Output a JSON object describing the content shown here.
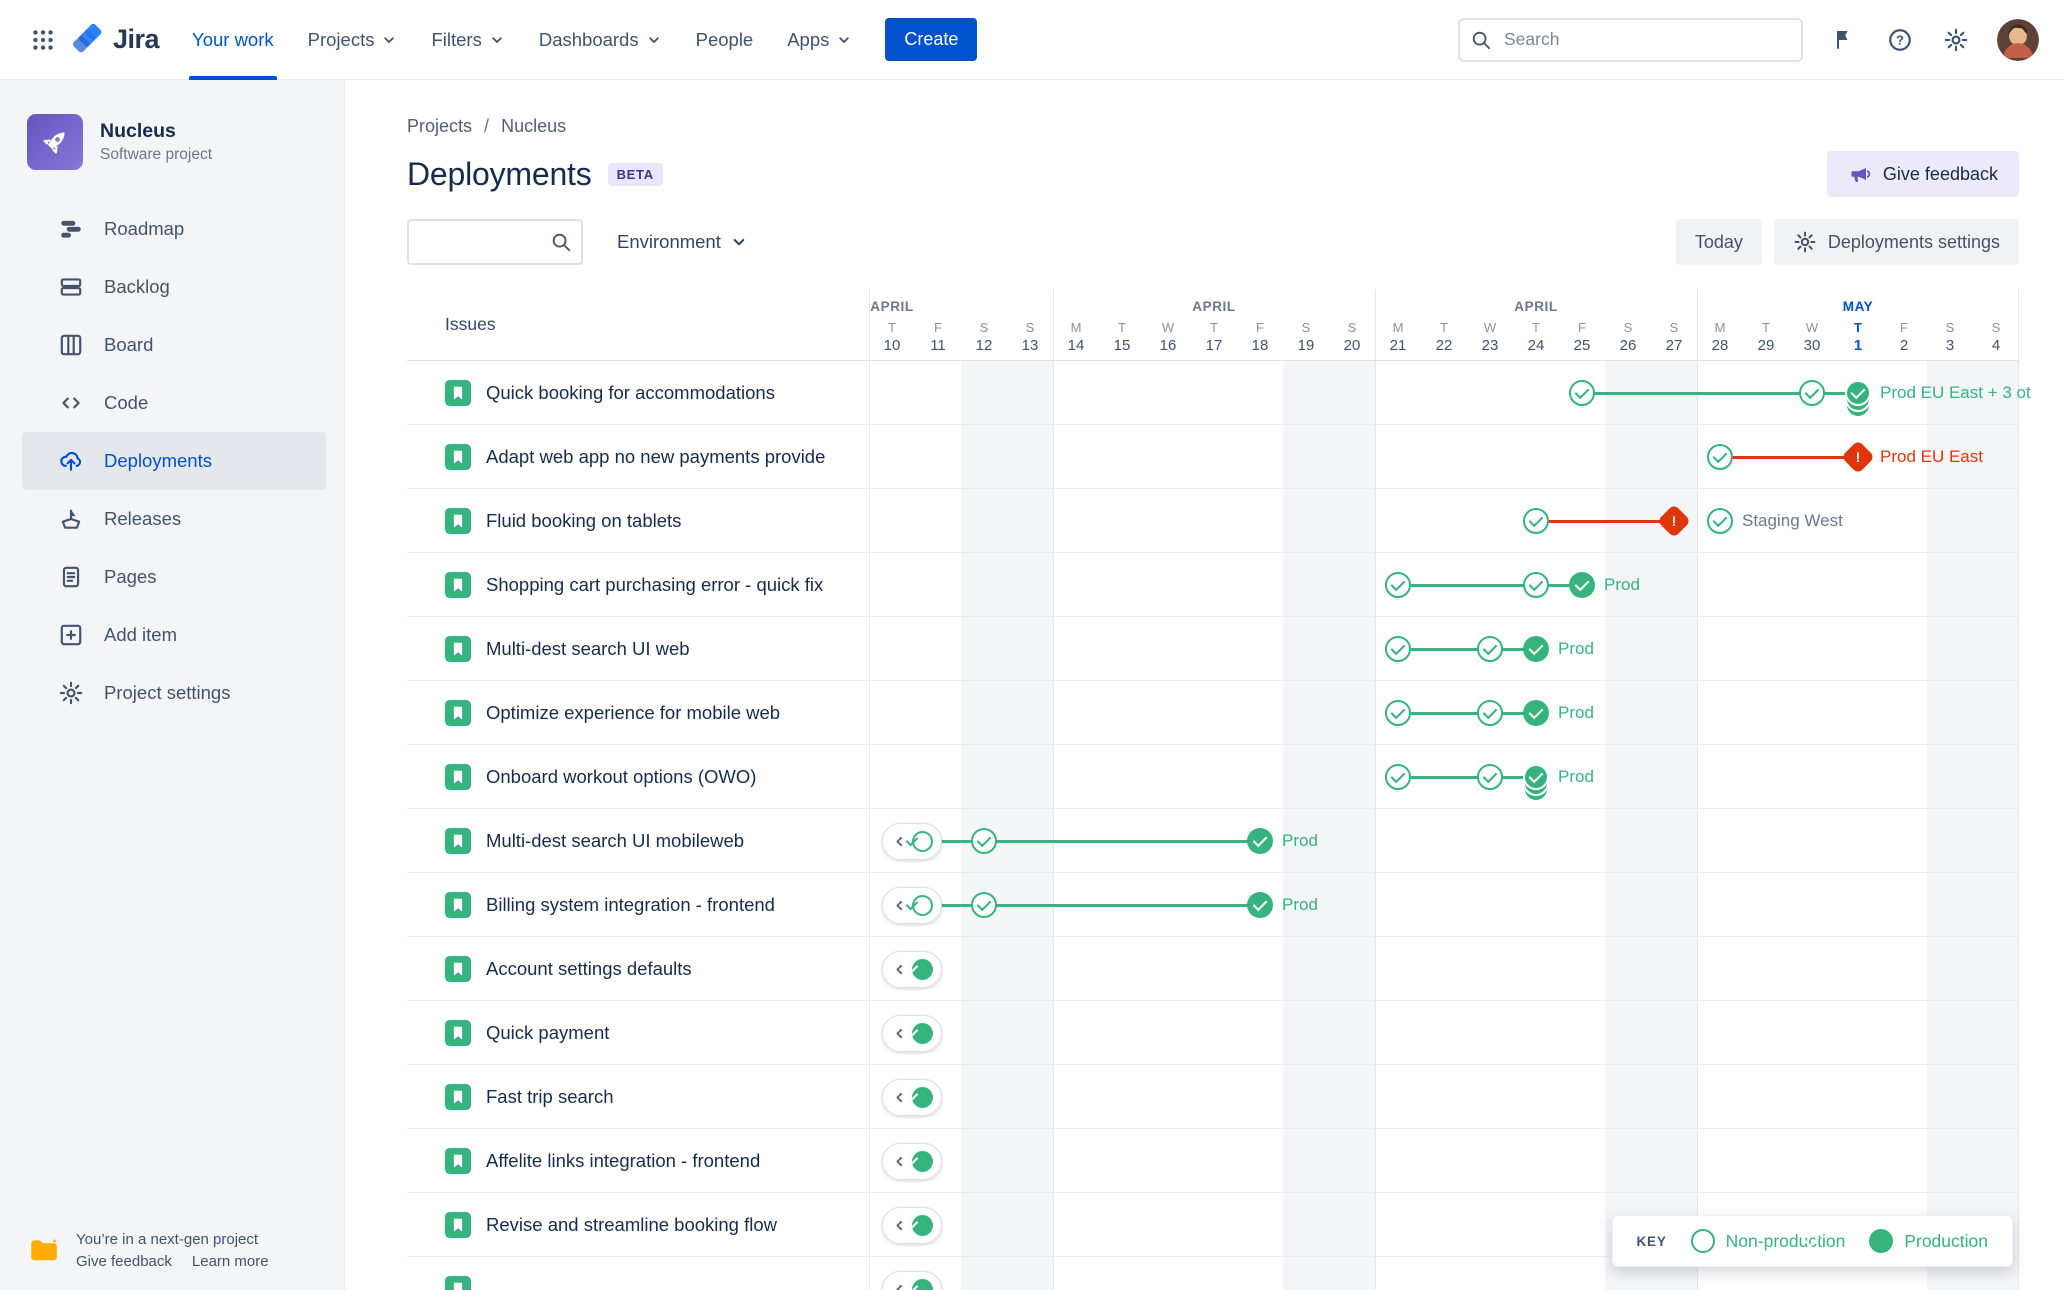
{
  "topnav": {
    "logo_text": "Jira",
    "items": [
      {
        "label": "Your work",
        "active": true,
        "chevron": false
      },
      {
        "label": "Projects",
        "active": false,
        "chevron": true
      },
      {
        "label": "Filters",
        "active": false,
        "chevron": true
      },
      {
        "label": "Dashboards",
        "active": false,
        "chevron": true
      },
      {
        "label": "People",
        "active": false,
        "chevron": false
      },
      {
        "label": "Apps",
        "active": false,
        "chevron": true
      }
    ],
    "create_label": "Create",
    "search_placeholder": "Search"
  },
  "sidebar": {
    "project_name": "Nucleus",
    "project_type": "Software project",
    "items": [
      {
        "label": "Roadmap",
        "icon": "roadmap-icon",
        "selected": false
      },
      {
        "label": "Backlog",
        "icon": "backlog-icon",
        "selected": false
      },
      {
        "label": "Board",
        "icon": "board-icon",
        "selected": false
      },
      {
        "label": "Code",
        "icon": "code-icon",
        "selected": false
      },
      {
        "label": "Deployments",
        "icon": "deployments-icon",
        "selected": true
      },
      {
        "label": "Releases",
        "icon": "releases-icon",
        "selected": false
      },
      {
        "label": "Pages",
        "icon": "pages-icon",
        "selected": false
      },
      {
        "label": "Add item",
        "icon": "add-item-icon",
        "selected": false
      },
      {
        "label": "Project settings",
        "icon": "settings-icon",
        "selected": false
      }
    ],
    "footer_note": "You’re in a next-gen project",
    "footer_links": [
      "Give feedback",
      "Learn more"
    ]
  },
  "page": {
    "breadcrumb": [
      "Projects",
      "Nucleus"
    ],
    "breadcrumb_separator": "/",
    "title": "Deployments",
    "beta_badge": "BETA",
    "give_feedback": "Give feedback",
    "environment_filter": "Environment",
    "today_button": "Today",
    "settings_button": "Deployments settings",
    "issues_header": "Issues"
  },
  "timeline": {
    "months": [
      {
        "label": "APRIL",
        "col": 0,
        "accent": false
      },
      {
        "label": "APRIL",
        "col": 7,
        "accent": false
      },
      {
        "label": "APRIL",
        "col": 14,
        "accent": false
      },
      {
        "label": "MAY",
        "col": 21,
        "accent": true
      }
    ],
    "days": [
      {
        "dow": "T",
        "date": "10"
      },
      {
        "dow": "F",
        "date": "11"
      },
      {
        "dow": "S",
        "date": "12"
      },
      {
        "dow": "S",
        "date": "13"
      },
      {
        "dow": "M",
        "date": "14"
      },
      {
        "dow": "T",
        "date": "15"
      },
      {
        "dow": "W",
        "date": "16"
      },
      {
        "dow": "T",
        "date": "17"
      },
      {
        "dow": "F",
        "date": "18"
      },
      {
        "dow": "S",
        "date": "19"
      },
      {
        "dow": "S",
        "date": "20"
      },
      {
        "dow": "M",
        "date": "21"
      },
      {
        "dow": "T",
        "date": "22"
      },
      {
        "dow": "W",
        "date": "23"
      },
      {
        "dow": "T",
        "date": "24"
      },
      {
        "dow": "F",
        "date": "25"
      },
      {
        "dow": "S",
        "date": "26"
      },
      {
        "dow": "S",
        "date": "27"
      },
      {
        "dow": "M",
        "date": "28"
      },
      {
        "dow": "T",
        "date": "29"
      },
      {
        "dow": "W",
        "date": "30"
      },
      {
        "dow": "T",
        "date": "1"
      },
      {
        "dow": "F",
        "date": "2"
      },
      {
        "dow": "S",
        "date": "3"
      },
      {
        "dow": "S",
        "date": "4"
      }
    ],
    "today_col": 21,
    "weekend_cols": [
      2,
      3,
      9,
      10,
      16,
      17,
      23,
      24
    ],
    "week_boundary_cols": [
      4,
      11,
      18
    ]
  },
  "rows": [
    {
      "title": "Quick booking for accommodations",
      "pill": null,
      "marks": [
        {
          "type": "outline",
          "col": 15
        },
        {
          "type": "outline",
          "col": 20
        },
        {
          "type": "stack",
          "col": 21
        }
      ],
      "lines": [
        {
          "from": 15,
          "to": 20,
          "color": "green"
        },
        {
          "from": 20,
          "to": 21,
          "color": "green"
        }
      ],
      "label": {
        "text": "Prod EU East + 3 ot",
        "col": 21,
        "color": "green"
      }
    },
    {
      "title": "Adapt web app no new payments provide",
      "pill": null,
      "marks": [
        {
          "type": "outline",
          "col": 18
        },
        {
          "type": "error",
          "col": 21
        }
      ],
      "lines": [
        {
          "from": 18,
          "to": 21,
          "color": "red"
        }
      ],
      "label": {
        "text": "Prod EU East",
        "col": 21,
        "color": "red"
      }
    },
    {
      "title": "Fluid booking on tablets",
      "pill": null,
      "marks": [
        {
          "type": "outline",
          "col": 14
        },
        {
          "type": "error",
          "col": 17
        },
        {
          "type": "outline",
          "col": 18
        }
      ],
      "lines": [
        {
          "from": 14,
          "to": 17,
          "color": "red"
        }
      ],
      "label": {
        "text": "Staging West",
        "col": 18,
        "color": "gray"
      }
    },
    {
      "title": "Shopping cart purchasing error - quick fix",
      "pill": null,
      "marks": [
        {
          "type": "outline",
          "col": 11
        },
        {
          "type": "outline",
          "col": 14
        },
        {
          "type": "filled",
          "col": 15
        }
      ],
      "lines": [
        {
          "from": 11,
          "to": 14,
          "color": "green"
        },
        {
          "from": 14,
          "to": 15,
          "color": "green"
        }
      ],
      "label": {
        "text": "Prod",
        "col": 15,
        "color": "green"
      }
    },
    {
      "title": "Multi-dest search UI web",
      "pill": null,
      "marks": [
        {
          "type": "outline",
          "col": 11
        },
        {
          "type": "outline",
          "col": 13
        },
        {
          "type": "filled",
          "col": 14
        }
      ],
      "lines": [
        {
          "from": 11,
          "to": 13,
          "color": "green"
        },
        {
          "from": 13,
          "to": 14,
          "color": "green"
        }
      ],
      "label": {
        "text": "Prod",
        "col": 14,
        "color": "green"
      }
    },
    {
      "title": "Optimize experience for mobile web",
      "pill": null,
      "marks": [
        {
          "type": "outline",
          "col": 11
        },
        {
          "type": "outline",
          "col": 13
        },
        {
          "type": "filled",
          "col": 14
        }
      ],
      "lines": [
        {
          "from": 11,
          "to": 13,
          "color": "green"
        },
        {
          "from": 13,
          "to": 14,
          "color": "green"
        }
      ],
      "label": {
        "text": "Prod",
        "col": 14,
        "color": "green"
      }
    },
    {
      "title": "Onboard workout options (OWO)",
      "pill": null,
      "marks": [
        {
          "type": "outline",
          "col": 11
        },
        {
          "type": "outline",
          "col": 13
        },
        {
          "type": "stack",
          "col": 14
        }
      ],
      "lines": [
        {
          "from": 11,
          "to": 13,
          "color": "green"
        },
        {
          "from": 13,
          "to": 14,
          "color": "green"
        }
      ],
      "label": {
        "text": "Prod",
        "col": 14,
        "color": "green"
      }
    },
    {
      "title": "Multi-dest search UI mobileweb",
      "pill": "outline",
      "marks": [
        {
          "type": "outline",
          "col": 2
        },
        {
          "type": "filled",
          "col": 8
        }
      ],
      "lines": [
        {
          "from": 1,
          "to": 2,
          "color": "green"
        },
        {
          "from": 2,
          "to": 8,
          "color": "green"
        }
      ],
      "label": {
        "text": "Prod",
        "col": 8,
        "color": "green"
      }
    },
    {
      "title": "Billing system integration - frontend",
      "pill": "outline",
      "marks": [
        {
          "type": "outline",
          "col": 2
        },
        {
          "type": "filled",
          "col": 8
        }
      ],
      "lines": [
        {
          "from": 1,
          "to": 2,
          "color": "green"
        },
        {
          "from": 2,
          "to": 8,
          "color": "green"
        }
      ],
      "label": {
        "text": "Prod",
        "col": 8,
        "color": "green"
      }
    },
    {
      "title": "Account settings defaults",
      "pill": "filled",
      "marks": [],
      "lines": [],
      "label": null
    },
    {
      "title": "Quick payment",
      "pill": "filled",
      "marks": [],
      "lines": [],
      "label": null
    },
    {
      "title": "Fast trip search",
      "pill": "filled",
      "marks": [],
      "lines": [],
      "label": null
    },
    {
      "title": "Affelite links integration - frontend",
      "pill": "filled",
      "marks": [],
      "lines": [],
      "label": null
    },
    {
      "title": "Revise and streamline booking flow",
      "pill": "filled",
      "marks": [],
      "lines": [],
      "label": null
    },
    {
      "title": "",
      "pill": "filled",
      "marks": [],
      "lines": [],
      "label": null
    }
  ],
  "legend": {
    "key_label": "KEY",
    "items": [
      {
        "label": "Non-production",
        "mark": "outline"
      },
      {
        "label": "Production",
        "mark": "filled"
      }
    ]
  },
  "colors": {
    "green": "#36B37E",
    "red": "#DE350B",
    "gray": "#6B778C",
    "accent": "#0052CC"
  }
}
